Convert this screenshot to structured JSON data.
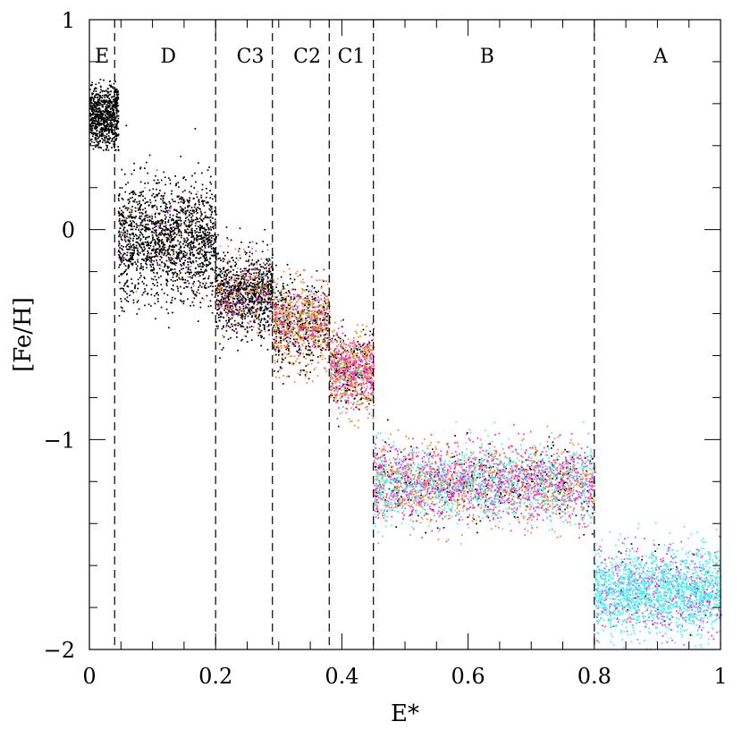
{
  "chart_data": {
    "type": "scatter",
    "xlabel": "E*",
    "ylabel": "[Fe/H]",
    "xlim": [
      0,
      1
    ],
    "ylim": [
      -2,
      1
    ],
    "x_ticks": [
      {
        "value": 0,
        "label": "0"
      },
      {
        "value": 0.2,
        "label": "0.2"
      },
      {
        "value": 0.4,
        "label": "0.4"
      },
      {
        "value": 0.6,
        "label": "0.6"
      },
      {
        "value": 0.8,
        "label": "0.8"
      },
      {
        "value": 1,
        "label": "1"
      }
    ],
    "y_ticks": [
      {
        "value": 1,
        "label": "1"
      },
      {
        "value": 0,
        "label": "0"
      },
      {
        "value": -1,
        "label": "−1"
      },
      {
        "value": -2,
        "label": "−2"
      }
    ],
    "x_minor_step": 0.05,
    "y_minor_step": 0.2,
    "boundaries": [
      0.04,
      0.2,
      0.29,
      0.38,
      0.45,
      0.8
    ],
    "regions": [
      {
        "label": "E",
        "x_center": 0.02
      },
      {
        "label": "D",
        "x_center": 0.125
      },
      {
        "label": "C3",
        "x_center": 0.255
      },
      {
        "label": "C2",
        "x_center": 0.345
      },
      {
        "label": "C1",
        "x_center": 0.415
      },
      {
        "label": "B",
        "x_center": 0.63
      },
      {
        "label": "A",
        "x_center": 0.905
      }
    ],
    "series_colors": {
      "black": "#000000",
      "orange": "#ff7f1e",
      "magenta": "#ff20ee",
      "cyan": "#3ef4ee"
    },
    "clusters": [
      {
        "region": "E",
        "x_range": [
          0.0,
          0.045
        ],
        "feh_center": 0.55,
        "feh_spread": 0.08,
        "feh_range": [
          0.38,
          0.72
        ],
        "mix": {
          "black": 1.0
        }
      },
      {
        "region": "D",
        "x_range": [
          0.045,
          0.2
        ],
        "feh_center": -0.05,
        "feh_spread": 0.14,
        "feh_range": [
          -0.6,
          0.5
        ],
        "mix": {
          "black": 0.97,
          "orange": 0.02,
          "magenta": 0.01
        }
      },
      {
        "region": "C3",
        "x_range": [
          0.2,
          0.29
        ],
        "feh_center": -0.3,
        "feh_spread": 0.1,
        "feh_range": [
          -0.62,
          0.02
        ],
        "mix": {
          "black": 0.8,
          "orange": 0.12,
          "magenta": 0.06,
          "cyan": 0.02
        }
      },
      {
        "region": "C2",
        "x_range": [
          0.29,
          0.38
        ],
        "feh_center": -0.45,
        "feh_spread": 0.1,
        "feh_range": [
          -0.75,
          -0.15
        ],
        "mix": {
          "black": 0.4,
          "orange": 0.45,
          "magenta": 0.1,
          "cyan": 0.05
        }
      },
      {
        "region": "C1",
        "x_range": [
          0.38,
          0.45
        ],
        "feh_center": -0.67,
        "feh_spread": 0.09,
        "feh_range": [
          -0.95,
          -0.35
        ],
        "mix": {
          "black": 0.22,
          "orange": 0.5,
          "magenta": 0.22,
          "cyan": 0.06
        }
      },
      {
        "region": "B",
        "x_range": [
          0.45,
          0.8
        ],
        "feh_center": -1.2,
        "feh_spread": 0.09,
        "feh_range": [
          -1.52,
          -0.85
        ],
        "mix": {
          "black": 0.1,
          "orange": 0.3,
          "magenta": 0.3,
          "cyan": 0.3
        }
      },
      {
        "region": "A",
        "x_range": [
          0.8,
          1.0
        ],
        "feh_center": -1.72,
        "feh_spread": 0.1,
        "feh_range": [
          -2.0,
          -1.35
        ],
        "mix": {
          "black": 0.02,
          "magenta": 0.23,
          "cyan": 0.75
        }
      }
    ]
  }
}
